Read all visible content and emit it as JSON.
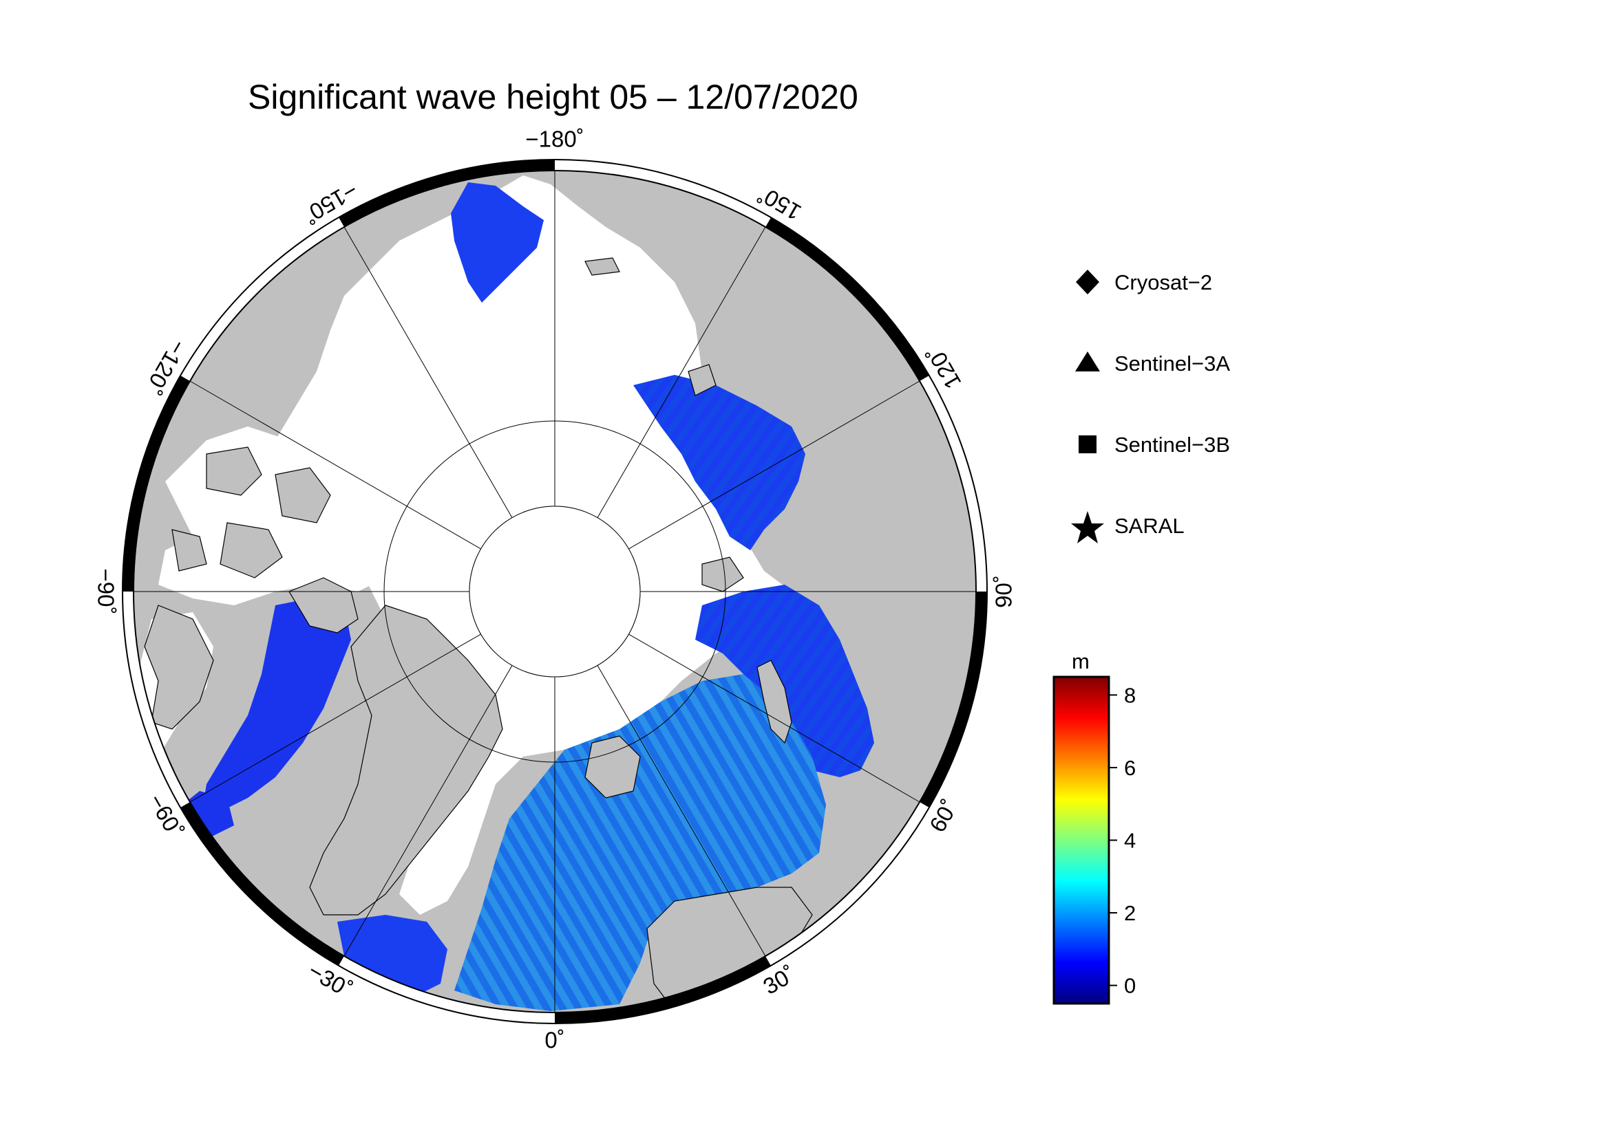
{
  "title": "Significant wave height 05 – 12/07/2020",
  "projection": "north polar stereographic",
  "longitude_labels": [
    {
      "lon": -180,
      "text": "−180˚"
    },
    {
      "lon": 150,
      "text": "150˚"
    },
    {
      "lon": 120,
      "text": "120˚"
    },
    {
      "lon": 90,
      "text": "90˚"
    },
    {
      "lon": 60,
      "text": "60˚"
    },
    {
      "lon": 30,
      "text": "30˚"
    },
    {
      "lon": 0,
      "text": "0˚"
    },
    {
      "lon": -30,
      "text": "−30˚"
    },
    {
      "lon": -60,
      "text": "−60˚"
    },
    {
      "lon": -90,
      "text": "−90˚"
    },
    {
      "lon": -120,
      "text": "−120˚"
    },
    {
      "lon": -150,
      "text": "−150˚"
    }
  ],
  "legend": {
    "items": [
      {
        "symbol": "diamond-icon",
        "label": "Cryosat−2"
      },
      {
        "symbol": "triangle-icon",
        "label": "Sentinel−3A"
      },
      {
        "symbol": "square-icon",
        "label": "Sentinel−3B"
      },
      {
        "symbol": "star-icon",
        "label": "SARAL"
      }
    ]
  },
  "colorbar": {
    "unit": "m",
    "min": -0.5,
    "max": 8.5,
    "ticks": [
      {
        "value": 0,
        "label": "0"
      },
      {
        "value": 2,
        "label": "2"
      },
      {
        "value": 4,
        "label": "4"
      },
      {
        "value": 6,
        "label": "6"
      },
      {
        "value": 8,
        "label": "8"
      }
    ],
    "colors": [
      "#00007f",
      "#0000ff",
      "#007fff",
      "#00ffff",
      "#7fff7f",
      "#ffff00",
      "#ff7f00",
      "#ff0000",
      "#7f0000"
    ]
  },
  "colors": {
    "land": "#c0c0c0",
    "ice": "#ffffff",
    "frame_dark": "#000000",
    "frame_light": "#ffffff",
    "wave_low": "#1a2fe6",
    "wave_mid": "#1e7fe0"
  }
}
